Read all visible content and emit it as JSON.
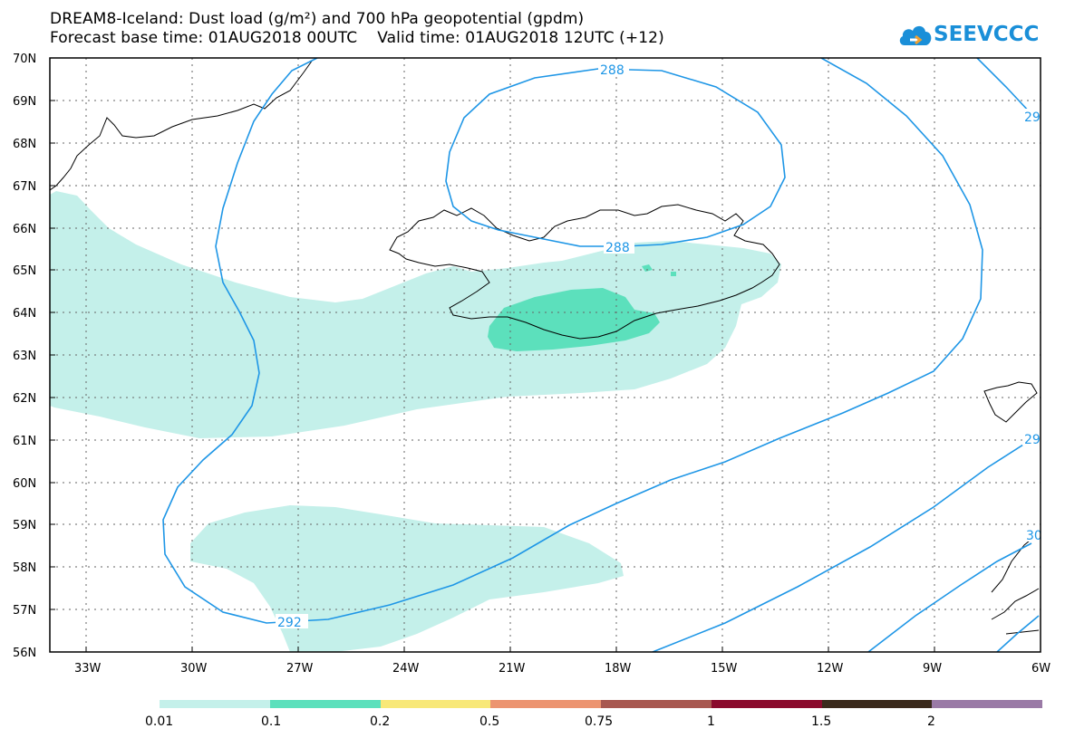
{
  "title": {
    "line1": "DREAM8-Iceland: Dust load (g/m²) and 700 hPa geopotential (gpdm)",
    "line2": "Forecast base time: 01AUG2018 00UTC    Valid time: 01AUG2018 12UTC (+12)"
  },
  "logo": {
    "text": "SEEVCCC",
    "icon": "cloud-icon"
  },
  "map": {
    "lat_labels": [
      "70N",
      "69N",
      "68N",
      "67N",
      "66N",
      "65N",
      "64N",
      "63N",
      "62N",
      "61N",
      "60N",
      "59N",
      "58N",
      "57N",
      "56N"
    ],
    "lon_labels": [
      "33W",
      "30W",
      "27W",
      "24W",
      "21W",
      "18W",
      "15W",
      "12W",
      "9W",
      "6W"
    ],
    "contour_labels": [
      "288",
      "288",
      "292",
      "29",
      "29",
      "30"
    ],
    "colors": {
      "contour": "#1e96e6",
      "dust_low": "#c4f0ea",
      "dust_mid": "#5ce0bc"
    }
  },
  "colorbar": {
    "labels": [
      "0.01",
      "0.1",
      "0.2",
      "0.5",
      "0.75",
      "1",
      "1.5",
      "2"
    ],
    "colors": [
      "#c4f0ea",
      "#5ce0bc",
      "#f8e878",
      "#ec9470",
      "#a85850",
      "#8a0a2c",
      "#3a2a1c",
      "#9a7aa6"
    ]
  }
}
